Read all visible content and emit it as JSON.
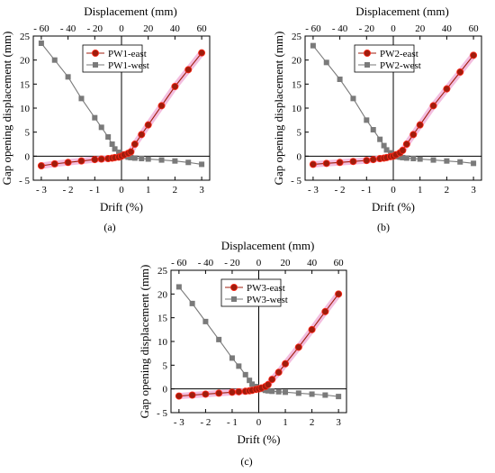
{
  "chart_data": [
    {
      "type": "line",
      "panel_label": "(a)",
      "xlabel": "Drift (%)",
      "x2label": "Displacement (mm)",
      "ylabel": "Gap opening displacement (mm)",
      "xlim": [
        -3.3,
        3.3
      ],
      "ylim": [
        -5,
        25
      ],
      "xticks": [
        -3,
        -2,
        -1,
        0,
        1,
        2,
        3
      ],
      "xtick_labels": [
        "- 3",
        "- 2",
        "- 1",
        "0",
        "1",
        "2",
        "3"
      ],
      "x2ticks": [
        -60,
        -40,
        -20,
        0,
        20,
        40,
        60
      ],
      "x2tick_labels": [
        "- 60",
        "- 40",
        "- 20",
        "0",
        "20",
        "40",
        "60"
      ],
      "yticks": [
        -5,
        0,
        5,
        10,
        15,
        20,
        25
      ],
      "ytick_labels": [
        "- 5",
        "0",
        "5",
        "10",
        "15",
        "20",
        "25"
      ],
      "legend_position": "top-center",
      "series": [
        {
          "name": "PW1-east",
          "color": "#a01c0c",
          "marker": "circle",
          "x": [
            -3,
            -2.5,
            -2,
            -1.5,
            -1,
            -0.75,
            -0.5,
            -0.35,
            -0.25,
            -0.1,
            0,
            0.1,
            0.25,
            0.35,
            0.5,
            0.75,
            1,
            1.5,
            2,
            2.5,
            3
          ],
          "y": [
            -2,
            -1.6,
            -1.3,
            -1,
            -0.7,
            -0.6,
            -0.5,
            -0.4,
            -0.3,
            -0.2,
            0,
            0.3,
            0.6,
            0.9,
            2.5,
            4.5,
            6.5,
            10.5,
            14.5,
            18,
            21.5
          ]
        },
        {
          "name": "PW1-west",
          "color": "#7a7a7a",
          "marker": "square",
          "x": [
            -3,
            -2.5,
            -2,
            -1.5,
            -1,
            -0.75,
            -0.5,
            -0.35,
            -0.25,
            -0.1,
            0,
            0.1,
            0.25,
            0.35,
            0.5,
            0.75,
            1,
            1.5,
            2,
            2.5,
            3
          ],
          "y": [
            23.5,
            20,
            16.5,
            12,
            8,
            6,
            4,
            2.5,
            1.5,
            0.8,
            0.3,
            0,
            -0.2,
            -0.3,
            -0.4,
            -0.5,
            -0.6,
            -0.8,
            -1,
            -1.3,
            -1.7
          ]
        }
      ]
    },
    {
      "type": "line",
      "panel_label": "(b)",
      "xlabel": "Drift (%)",
      "x2label": "Displacement (mm)",
      "ylabel": "Gap opening displacement (mm)",
      "xlim": [
        -3.3,
        3.3
      ],
      "ylim": [
        -5,
        25
      ],
      "xticks": [
        -3,
        -2,
        -1,
        0,
        1,
        2,
        3
      ],
      "xtick_labels": [
        "- 3",
        "- 2",
        "- 1",
        "0",
        "1",
        "2",
        "3"
      ],
      "x2ticks": [
        -60,
        -40,
        -20,
        0,
        20,
        40,
        60
      ],
      "x2tick_labels": [
        "- 60",
        "- 40",
        "- 20",
        "0",
        "20",
        "40",
        "60"
      ],
      "yticks": [
        -5,
        0,
        5,
        10,
        15,
        20,
        25
      ],
      "ytick_labels": [
        "- 5",
        "0",
        "5",
        "10",
        "15",
        "20",
        "25"
      ],
      "legend_position": "top-center",
      "series": [
        {
          "name": "PW2-east",
          "color": "#a01c0c",
          "marker": "circle",
          "x": [
            -3,
            -2.5,
            -2,
            -1.5,
            -1,
            -0.75,
            -0.5,
            -0.35,
            -0.25,
            -0.1,
            0,
            0.1,
            0.25,
            0.35,
            0.5,
            0.75,
            1,
            1.5,
            2,
            2.5,
            3
          ],
          "y": [
            -1.7,
            -1.5,
            -1.3,
            -1.1,
            -0.9,
            -0.7,
            -0.5,
            -0.4,
            -0.3,
            -0.1,
            0,
            0.3,
            0.7,
            1.2,
            2.5,
            4.5,
            6.5,
            10.5,
            14,
            17.5,
            21
          ]
        },
        {
          "name": "PW2-west",
          "color": "#7a7a7a",
          "marker": "square",
          "x": [
            -3,
            -2.5,
            -2,
            -1.5,
            -1,
            -0.75,
            -0.5,
            -0.35,
            -0.25,
            -0.1,
            0,
            0.1,
            0.25,
            0.35,
            0.5,
            0.75,
            1,
            1.5,
            2,
            2.5,
            3
          ],
          "y": [
            23,
            19.5,
            16,
            12,
            7.5,
            5.5,
            3.5,
            2.2,
            1.3,
            0.7,
            0.2,
            -0.1,
            -0.2,
            -0.3,
            -0.4,
            -0.5,
            -0.6,
            -0.8,
            -1,
            -1.2,
            -1.5
          ]
        }
      ]
    },
    {
      "type": "line",
      "panel_label": "(c)",
      "xlabel": "Drift (%)",
      "x2label": "Displacement (mm)",
      "ylabel": "Gap opening displacement (mm)",
      "xlim": [
        -3.3,
        3.3
      ],
      "ylim": [
        -5,
        25
      ],
      "xticks": [
        -3,
        -2,
        -1,
        0,
        1,
        2,
        3
      ],
      "xtick_labels": [
        "- 3",
        "- 2",
        "- 1",
        "0",
        "1",
        "2",
        "3"
      ],
      "x2ticks": [
        -60,
        -40,
        -20,
        0,
        20,
        40,
        60
      ],
      "x2tick_labels": [
        "- 60",
        "- 40",
        "- 20",
        "0",
        "20",
        "40",
        "60"
      ],
      "yticks": [
        -5,
        0,
        5,
        10,
        15,
        20,
        25
      ],
      "ytick_labels": [
        "- 5",
        "0",
        "5",
        "10",
        "15",
        "20",
        "25"
      ],
      "legend_position": "top-center",
      "series": [
        {
          "name": "PW3-east",
          "color": "#a01c0c",
          "marker": "circle",
          "x": [
            -3,
            -2.5,
            -2,
            -1.5,
            -1,
            -0.75,
            -0.5,
            -0.35,
            -0.25,
            -0.1,
            0,
            0.1,
            0.25,
            0.35,
            0.5,
            0.75,
            1,
            1.5,
            2,
            2.5,
            3
          ],
          "y": [
            -1.5,
            -1.3,
            -1.1,
            -0.9,
            -0.7,
            -0.6,
            -0.5,
            -0.4,
            -0.3,
            -0.1,
            0,
            0.2,
            0.5,
            0.9,
            2,
            3.5,
            5.3,
            8.8,
            12.5,
            16.3,
            20
          ]
        },
        {
          "name": "PW3-west",
          "color": "#7a7a7a",
          "marker": "square",
          "x": [
            -3,
            -2.5,
            -2,
            -1.5,
            -1,
            -0.75,
            -0.5,
            -0.35,
            -0.25,
            -0.1,
            0,
            0.1,
            0.25,
            0.35,
            0.5,
            0.75,
            1,
            1.5,
            2,
            2.5,
            3
          ],
          "y": [
            21.5,
            18,
            14.2,
            10.4,
            6.5,
            4.8,
            3,
            1.8,
            1,
            0.5,
            0.2,
            -0.1,
            -0.3,
            -0.4,
            -0.5,
            -0.6,
            -0.7,
            -0.9,
            -1.1,
            -1.3,
            -1.6
          ]
        }
      ]
    }
  ]
}
